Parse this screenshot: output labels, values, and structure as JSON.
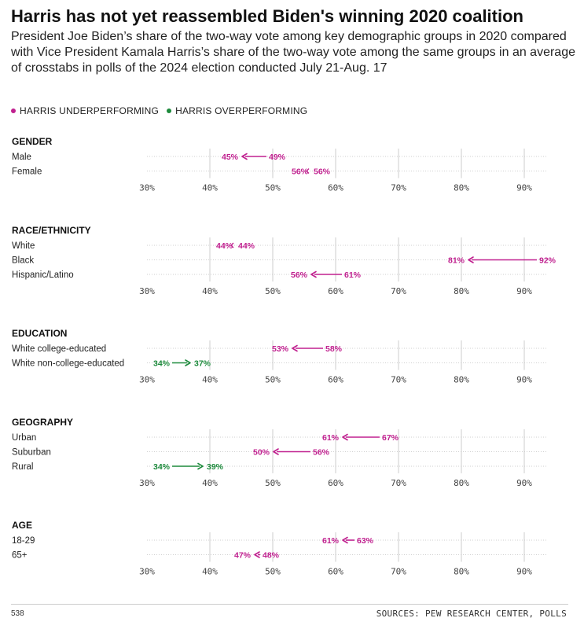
{
  "title": "Harris has not yet reassembled Biden's winning 2020 coalition",
  "subtitle": "President Joe Biden’s share of the two-way vote among key demographic groups in 2020 compared with Vice President Kamala Harris’s share of the two-way vote among the same groups in an average of crosstabs in polls of the 2024 election conducted July 21-Aug. 17",
  "legend": {
    "under_label": "HARRIS UNDERPERFORMING",
    "over_label": "HARRIS OVERPERFORMING"
  },
  "colors": {
    "under": "#c0208f",
    "over": "#1d8a3c",
    "grid": "#cccccc",
    "text": "#222222"
  },
  "chart_data": {
    "type": "arrow-dot",
    "xlim": [
      30,
      92
    ],
    "ticks": [
      30,
      40,
      50,
      60,
      70,
      80,
      90
    ],
    "tick_labels": [
      "30%",
      "40%",
      "50%",
      "60%",
      "70%",
      "80%",
      "90%"
    ],
    "panels": [
      {
        "title": "GENDER",
        "rows": [
          {
            "label": "Male",
            "biden_2020": 49,
            "harris_2024": 45
          },
          {
            "label": "Female",
            "biden_2020": 56,
            "harris_2024": 56
          }
        ]
      },
      {
        "title": "RACE/ETHNICITY",
        "rows": [
          {
            "label": "White",
            "biden_2020": 44,
            "harris_2024": 44
          },
          {
            "label": "Black",
            "biden_2020": 92,
            "harris_2024": 81
          },
          {
            "label": "Hispanic/Latino",
            "biden_2020": 61,
            "harris_2024": 56
          }
        ]
      },
      {
        "title": "EDUCATION",
        "rows": [
          {
            "label": "White college-educated",
            "biden_2020": 58,
            "harris_2024": 53
          },
          {
            "label": "White non-college-educated",
            "biden_2020": 34,
            "harris_2024": 37
          }
        ]
      },
      {
        "title": "GEOGRAPHY",
        "rows": [
          {
            "label": "Urban",
            "biden_2020": 67,
            "harris_2024": 61
          },
          {
            "label": "Suburban",
            "biden_2020": 56,
            "harris_2024": 50
          },
          {
            "label": "Rural",
            "biden_2020": 34,
            "harris_2024": 39
          }
        ]
      },
      {
        "title": "AGE",
        "rows": [
          {
            "label": "18-29",
            "biden_2020": 63,
            "harris_2024": 61
          },
          {
            "label": "65+",
            "biden_2020": 48,
            "harris_2024": 47
          }
        ]
      }
    ]
  },
  "footer": {
    "left": "538",
    "right": "SOURCES: PEW RESEARCH CENTER, POLLS"
  }
}
